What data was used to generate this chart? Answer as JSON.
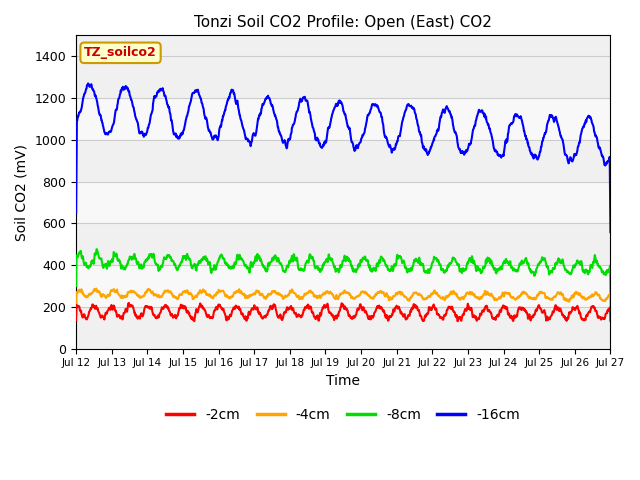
{
  "title": "Tonzi Soil CO2 Profile: Open (East) CO2",
  "ylabel": "Soil CO2 (mV)",
  "xlabel": "Time",
  "tag_label": "TZ_soilco2",
  "tag_color": "#cc0000",
  "tag_bg": "#ffffcc",
  "tag_border": "#cc9900",
  "ylim": [
    0,
    1500
  ],
  "yticks": [
    0,
    200,
    400,
    600,
    800,
    1000,
    1200,
    1400
  ],
  "xtick_labels": [
    "Jul 12",
    "Jul 13",
    "Jul 14",
    "Jul 15",
    "Jul 16",
    "Jul 17",
    "Jul 18",
    "Jul 19",
    "Jul 20",
    "Jul 21",
    "Jul 22",
    "Jul 23",
    "Jul 24",
    "Jul 25",
    "Jul 26",
    "Jul 27"
  ],
  "background_color": "#ffffff",
  "plot_bg_color": "#f0f0f0",
  "band_light_color": "#e8e8e8",
  "band_dark_color": "#d8d8d8",
  "legend_entries": [
    "-2cm",
    "-4cm",
    "-8cm",
    "-16cm"
  ],
  "legend_colors": [
    "#ff0000",
    "#ffa500",
    "#00dd00",
    "#0000ff"
  ],
  "line_width": 1.5,
  "seed": 42
}
